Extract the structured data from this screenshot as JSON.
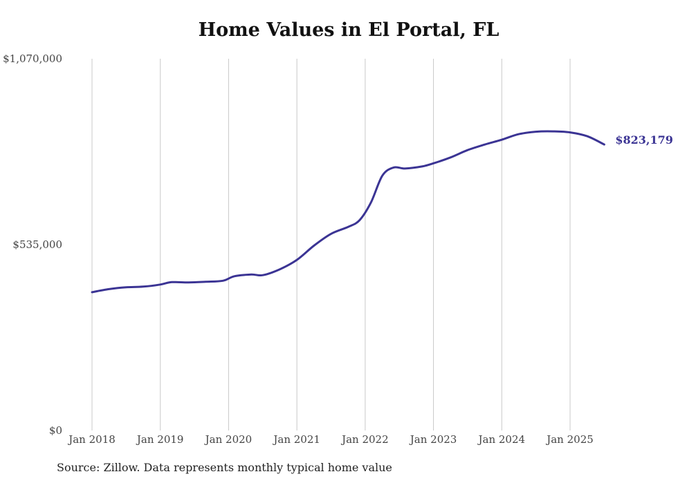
{
  "chart_data": {
    "type": "line",
    "title": "Home Values in El Portal, FL",
    "xlabel": "",
    "ylabel": "",
    "ylim": [
      0,
      1070000
    ],
    "grid": "vertical",
    "y_ticks": [
      "$0",
      "$535,000",
      "$1,070,000"
    ],
    "x_ticks": [
      "Jan 2018",
      "Jan 2019",
      "Jan 2020",
      "Jan 2021",
      "Jan 2022",
      "Jan 2023",
      "Jan 2024",
      "Jan 2025"
    ],
    "line_color": "#3b3494",
    "end_label": "$823,179",
    "series": [
      {
        "x": [
          "2018-01",
          "2018-04",
          "2018-07",
          "2018-10",
          "2019-01",
          "2019-03",
          "2019-06",
          "2019-09",
          "2019-12",
          "2020-02",
          "2020-05",
          "2020-07",
          "2020-10",
          "2021-01",
          "2021-04",
          "2021-07",
          "2021-10",
          "2021-12",
          "2022-02",
          "2022-04",
          "2022-06",
          "2022-08",
          "2022-11",
          "2023-01",
          "2023-04",
          "2023-07",
          "2023-10",
          "2024-01",
          "2024-04",
          "2024-07",
          "2024-10",
          "2025-01",
          "2025-04",
          "2025-07"
        ],
        "values": [
          398000,
          407000,
          412000,
          414000,
          420000,
          427000,
          426000,
          428000,
          431000,
          444000,
          449000,
          447000,
          464000,
          491000,
          532000,
          566000,
          586000,
          605000,
          656000,
          733000,
          757000,
          754000,
          760000,
          769000,
          786000,
          807000,
          823000,
          837000,
          853000,
          860000,
          861000,
          858000,
          847000,
          823179
        ]
      }
    ]
  },
  "source_text": "Source: Zillow. Data represents monthly typical home value"
}
